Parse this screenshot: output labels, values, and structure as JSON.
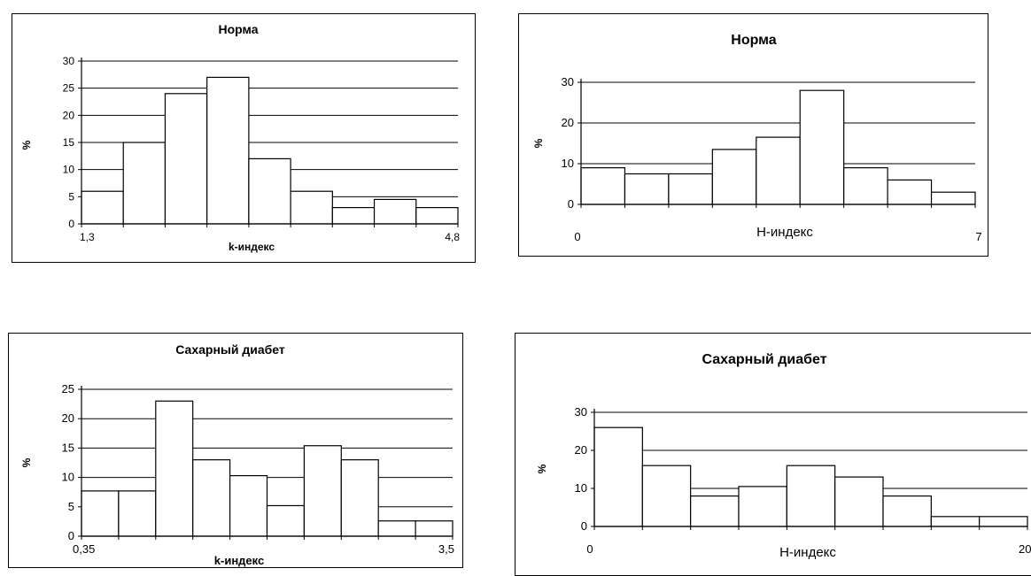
{
  "chart_data": [
    {
      "type": "bar",
      "title": "Норма",
      "xlabel": "k-индекс",
      "ylabel": "%",
      "x_tick_labels": [
        "1,3",
        "4,8"
      ],
      "y_ticks": [
        0,
        5,
        10,
        15,
        20,
        25,
        30
      ],
      "ylim": [
        0,
        30
      ],
      "grid": true,
      "values": [
        6,
        15,
        24,
        27,
        12,
        6,
        3,
        4.5,
        3
      ]
    },
    {
      "type": "bar",
      "title": "Норма",
      "xlabel": "Н-индекс",
      "ylabel": "%",
      "x_tick_labels": [
        "0",
        "7"
      ],
      "y_ticks": [
        0,
        10,
        20,
        30
      ],
      "ylim": [
        0,
        30
      ],
      "grid": true,
      "values": [
        9,
        7.5,
        7.5,
        13.5,
        16.5,
        28,
        9,
        6,
        3
      ]
    },
    {
      "type": "bar",
      "title": "Сахарный диабет",
      "xlabel": "k-индекс",
      "ylabel": "%",
      "x_tick_labels": [
        "0,35",
        "3,5"
      ],
      "y_ticks": [
        0,
        5,
        10,
        15,
        20,
        25
      ],
      "ylim": [
        0,
        25
      ],
      "grid": true,
      "values": [
        7.7,
        7.7,
        23,
        13,
        10.3,
        5.2,
        15.4,
        13,
        2.6,
        2.6
      ]
    },
    {
      "type": "bar",
      "title": "Сахарный диабет",
      "xlabel": "Н-индекс",
      "ylabel": "%",
      "x_tick_labels": [
        "0",
        "20"
      ],
      "y_ticks": [
        0,
        10,
        20,
        30
      ],
      "ylim": [
        0,
        30
      ],
      "grid": true,
      "values": [
        26,
        16,
        8,
        10.5,
        16,
        13,
        8,
        2.6,
        2.6
      ]
    }
  ]
}
